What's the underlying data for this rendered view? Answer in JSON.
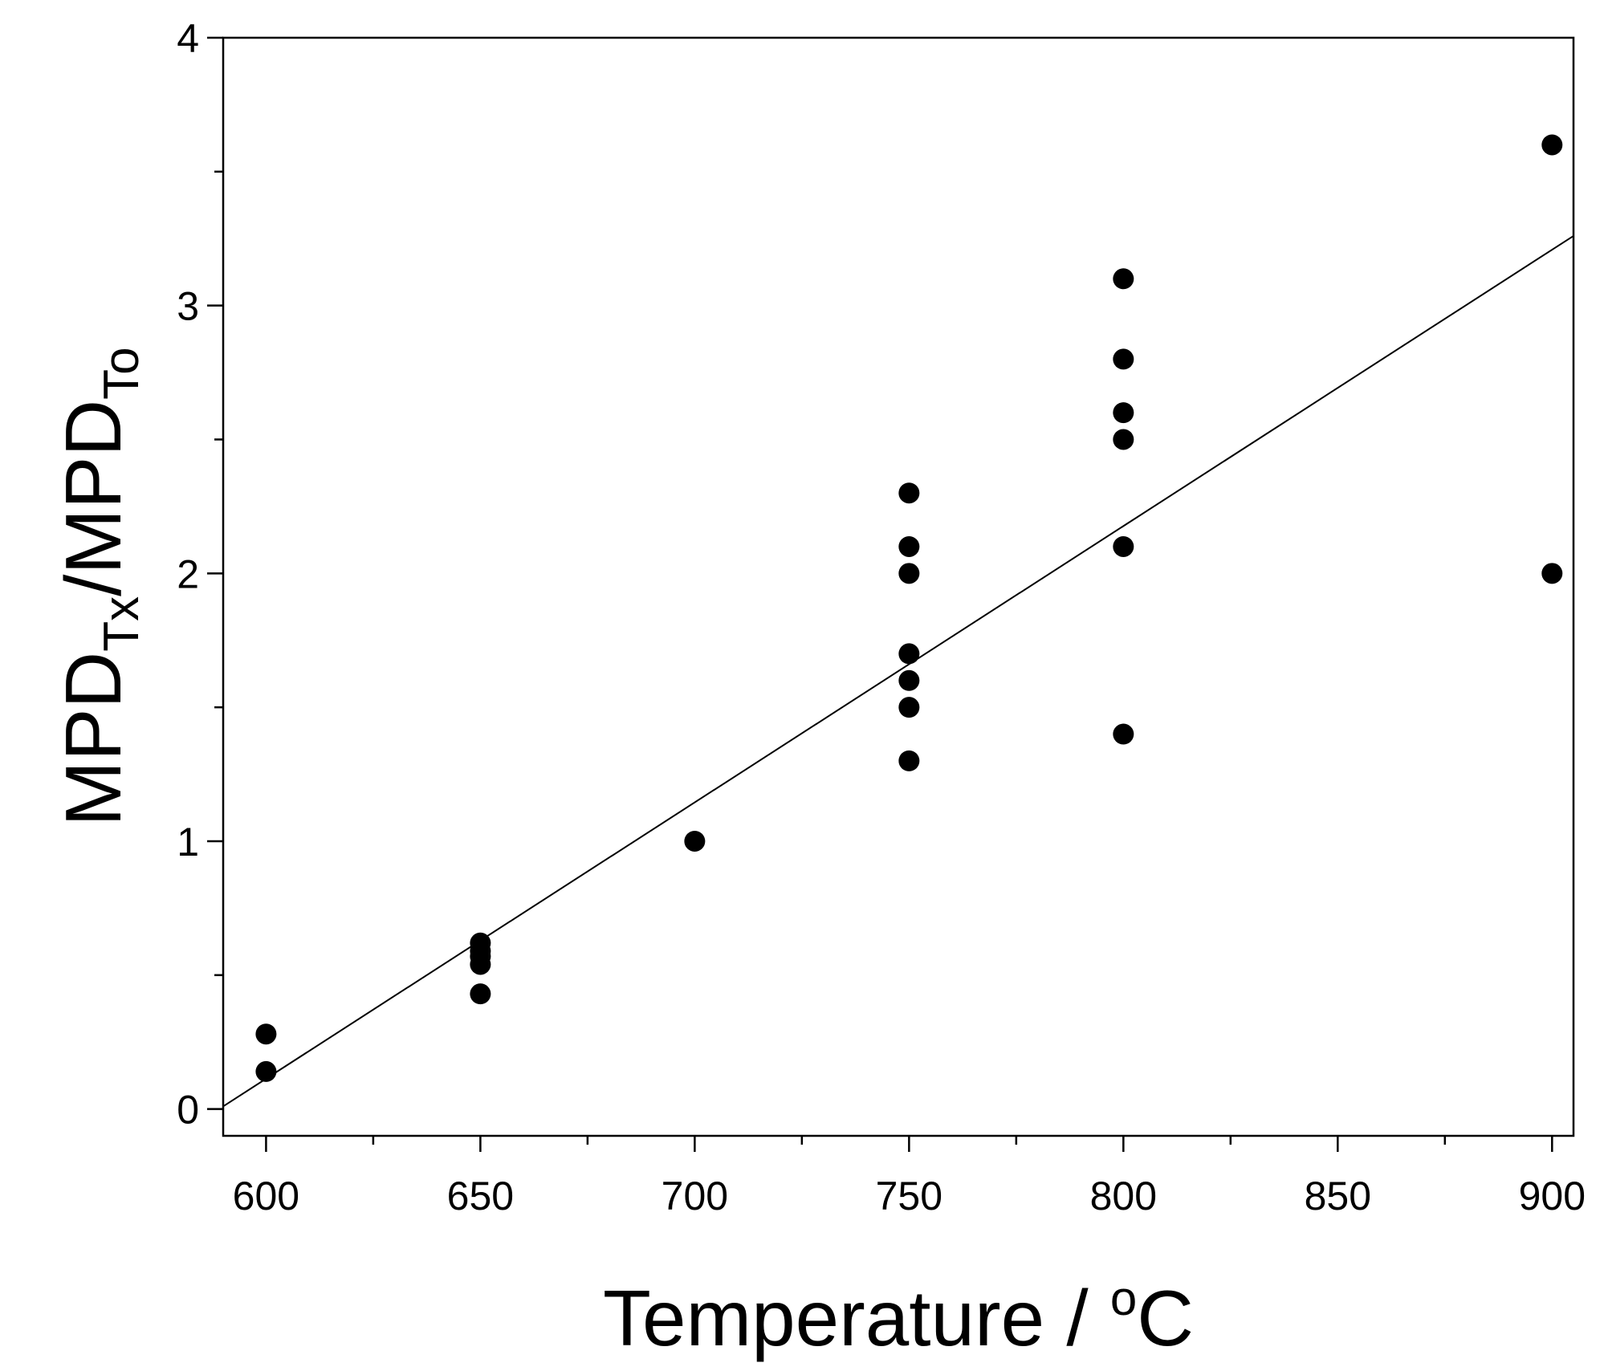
{
  "chart_data": {
    "type": "scatter",
    "title": "",
    "xlabel": {
      "main": "Temperature / ",
      "sup": "o",
      "unit": "C"
    },
    "ylabel": {
      "p1": "MPD",
      "sub1": "Tx",
      "p2": "/MPD",
      "sub2": "To"
    },
    "xlim": [
      590,
      905
    ],
    "ylim": [
      -0.1,
      4
    ],
    "x_ticks": [
      "600",
      "650",
      "700",
      "750",
      "800",
      "850",
      "900"
    ],
    "y_ticks": [
      "0",
      "1",
      "2",
      "3",
      "4"
    ],
    "x_minor_ticks": [
      625,
      675,
      725,
      775,
      825,
      875
    ],
    "y_minor_ticks": [
      0.5,
      1.5,
      2.5,
      3.5
    ],
    "grid": false,
    "legend": "none",
    "marker_color": "#000000",
    "points": [
      {
        "x": 600,
        "y": 0.28
      },
      {
        "x": 600,
        "y": 0.14
      },
      {
        "x": 650,
        "y": 0.62
      },
      {
        "x": 650,
        "y": 0.59
      },
      {
        "x": 650,
        "y": 0.57
      },
      {
        "x": 650,
        "y": 0.54
      },
      {
        "x": 650,
        "y": 0.43
      },
      {
        "x": 700,
        "y": 1.0
      },
      {
        "x": 750,
        "y": 2.3
      },
      {
        "x": 750,
        "y": 2.1
      },
      {
        "x": 750,
        "y": 2.0
      },
      {
        "x": 750,
        "y": 1.7
      },
      {
        "x": 750,
        "y": 1.6
      },
      {
        "x": 750,
        "y": 1.5
      },
      {
        "x": 750,
        "y": 1.3
      },
      {
        "x": 800,
        "y": 3.1
      },
      {
        "x": 800,
        "y": 2.8
      },
      {
        "x": 800,
        "y": 2.6
      },
      {
        "x": 800,
        "y": 2.5
      },
      {
        "x": 800,
        "y": 2.1
      },
      {
        "x": 800,
        "y": 1.4
      },
      {
        "x": 900,
        "y": 3.6
      },
      {
        "x": 900,
        "y": 2.0
      }
    ],
    "fit_line": {
      "x": [
        590,
        905
      ],
      "y": [
        0.01,
        3.26
      ]
    }
  }
}
